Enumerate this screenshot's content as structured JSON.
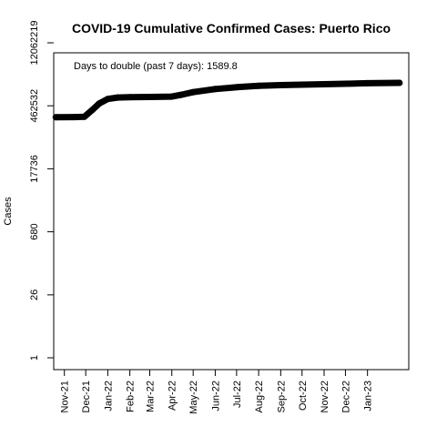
{
  "chart_data": {
    "type": "line",
    "title": "COVID-19 Cumulative Confirmed Cases: Puerto Rico",
    "xlabel": "",
    "ylabel": "Cases",
    "y_scale": "log",
    "ylim": [
      1,
      12062219
    ],
    "y_ticks": [
      1,
      26,
      680,
      17736,
      462532,
      12062219
    ],
    "y_tick_labels": [
      "1",
      "26",
      "680",
      "17736",
      "462532",
      "12062219"
    ],
    "x_range": [
      "2021-10-17",
      "2023-02-28"
    ],
    "x_ticks": [
      {
        "date": "2021-11-01",
        "label": "Nov-21"
      },
      {
        "date": "2021-12-01",
        "label": "Dec-21"
      },
      {
        "date": "2022-01-01",
        "label": "Jan-22"
      },
      {
        "date": "2022-02-01",
        "label": "Feb-22"
      },
      {
        "date": "2022-03-01",
        "label": "Mar-22"
      },
      {
        "date": "2022-04-01",
        "label": "Apr-22"
      },
      {
        "date": "2022-05-01",
        "label": "May-22"
      },
      {
        "date": "2022-06-01",
        "label": "Jun-22"
      },
      {
        "date": "2022-07-01",
        "label": "Jul-22"
      },
      {
        "date": "2022-08-01",
        "label": "Aug-22"
      },
      {
        "date": "2022-09-01",
        "label": "Sep-22"
      },
      {
        "date": "2022-10-01",
        "label": "Oct-22"
      },
      {
        "date": "2022-11-01",
        "label": "Nov-22"
      },
      {
        "date": "2022-12-01",
        "label": "Dec-22"
      },
      {
        "date": "2023-01-01",
        "label": "Jan-23"
      }
    ],
    "annotation": "Days to double (past 7 days): 1589.8",
    "grid": false,
    "line_color": "#000000",
    "series": [
      {
        "points": [
          {
            "x": "2021-10-20",
            "y": 255000
          },
          {
            "x": "2021-11-15",
            "y": 258000
          },
          {
            "x": "2021-11-29",
            "y": 262000
          },
          {
            "x": "2021-12-10",
            "y": 370000
          },
          {
            "x": "2021-12-20",
            "y": 520000
          },
          {
            "x": "2022-01-01",
            "y": 660000
          },
          {
            "x": "2022-01-15",
            "y": 710000
          },
          {
            "x": "2022-02-01",
            "y": 725000
          },
          {
            "x": "2022-03-01",
            "y": 730000
          },
          {
            "x": "2022-04-01",
            "y": 745000
          },
          {
            "x": "2022-04-15",
            "y": 820000
          },
          {
            "x": "2022-05-01",
            "y": 940000
          },
          {
            "x": "2022-06-01",
            "y": 1100000
          },
          {
            "x": "2022-07-01",
            "y": 1210000
          },
          {
            "x": "2022-08-01",
            "y": 1300000
          },
          {
            "x": "2022-09-01",
            "y": 1350000
          },
          {
            "x": "2022-10-01",
            "y": 1380000
          },
          {
            "x": "2022-11-01",
            "y": 1410000
          },
          {
            "x": "2022-12-01",
            "y": 1450000
          },
          {
            "x": "2023-01-01",
            "y": 1490000
          },
          {
            "x": "2023-02-15",
            "y": 1520000
          }
        ]
      }
    ]
  }
}
